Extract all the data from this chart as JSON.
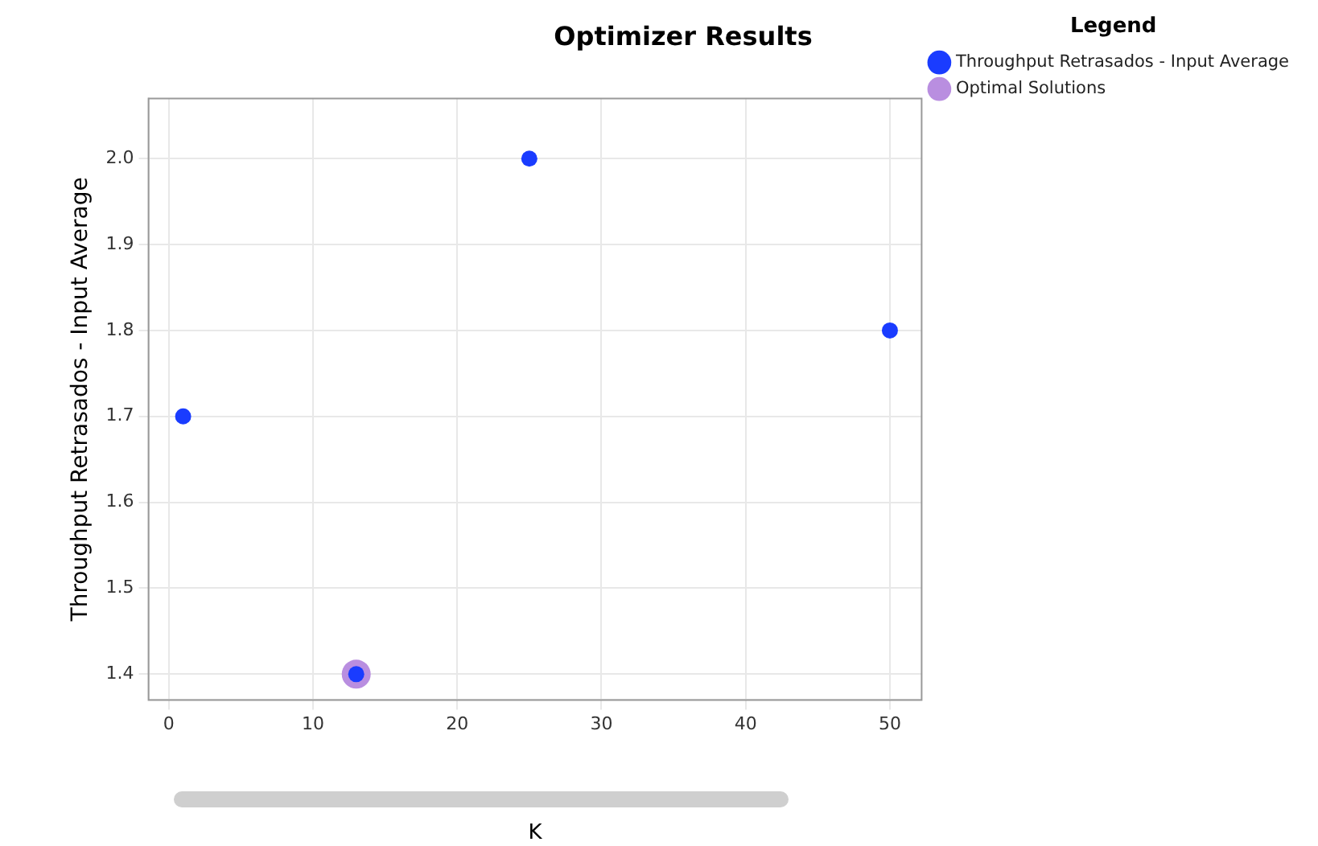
{
  "chart_data": {
    "type": "scatter",
    "title": "Optimizer Results",
    "xlabel": "K",
    "ylabel": "Throughput Retrasados - Input Average",
    "legend_title": "Legend",
    "series": [
      {
        "name": "Throughput Retrasados - Input Average",
        "color": "#1a3cff",
        "x": [
          1,
          13,
          25,
          50
        ],
        "values": [
          1.7,
          1.4,
          2.0,
          1.8
        ]
      },
      {
        "name": "Optimal Solutions",
        "color": "#b98ee0",
        "x": [
          13
        ],
        "values": [
          1.4
        ]
      }
    ],
    "xlim": [
      -1.4,
      52.2
    ],
    "xticks": [
      0,
      10,
      20,
      30,
      40,
      50
    ],
    "ylim": [
      1.37,
      2.07
    ],
    "yticks": [
      1.4,
      1.5,
      1.6,
      1.7,
      1.8,
      1.9,
      {
        "value": 2.0,
        "label": "2.0"
      }
    ],
    "grid": true,
    "legend": "right",
    "marker": "circle"
  }
}
